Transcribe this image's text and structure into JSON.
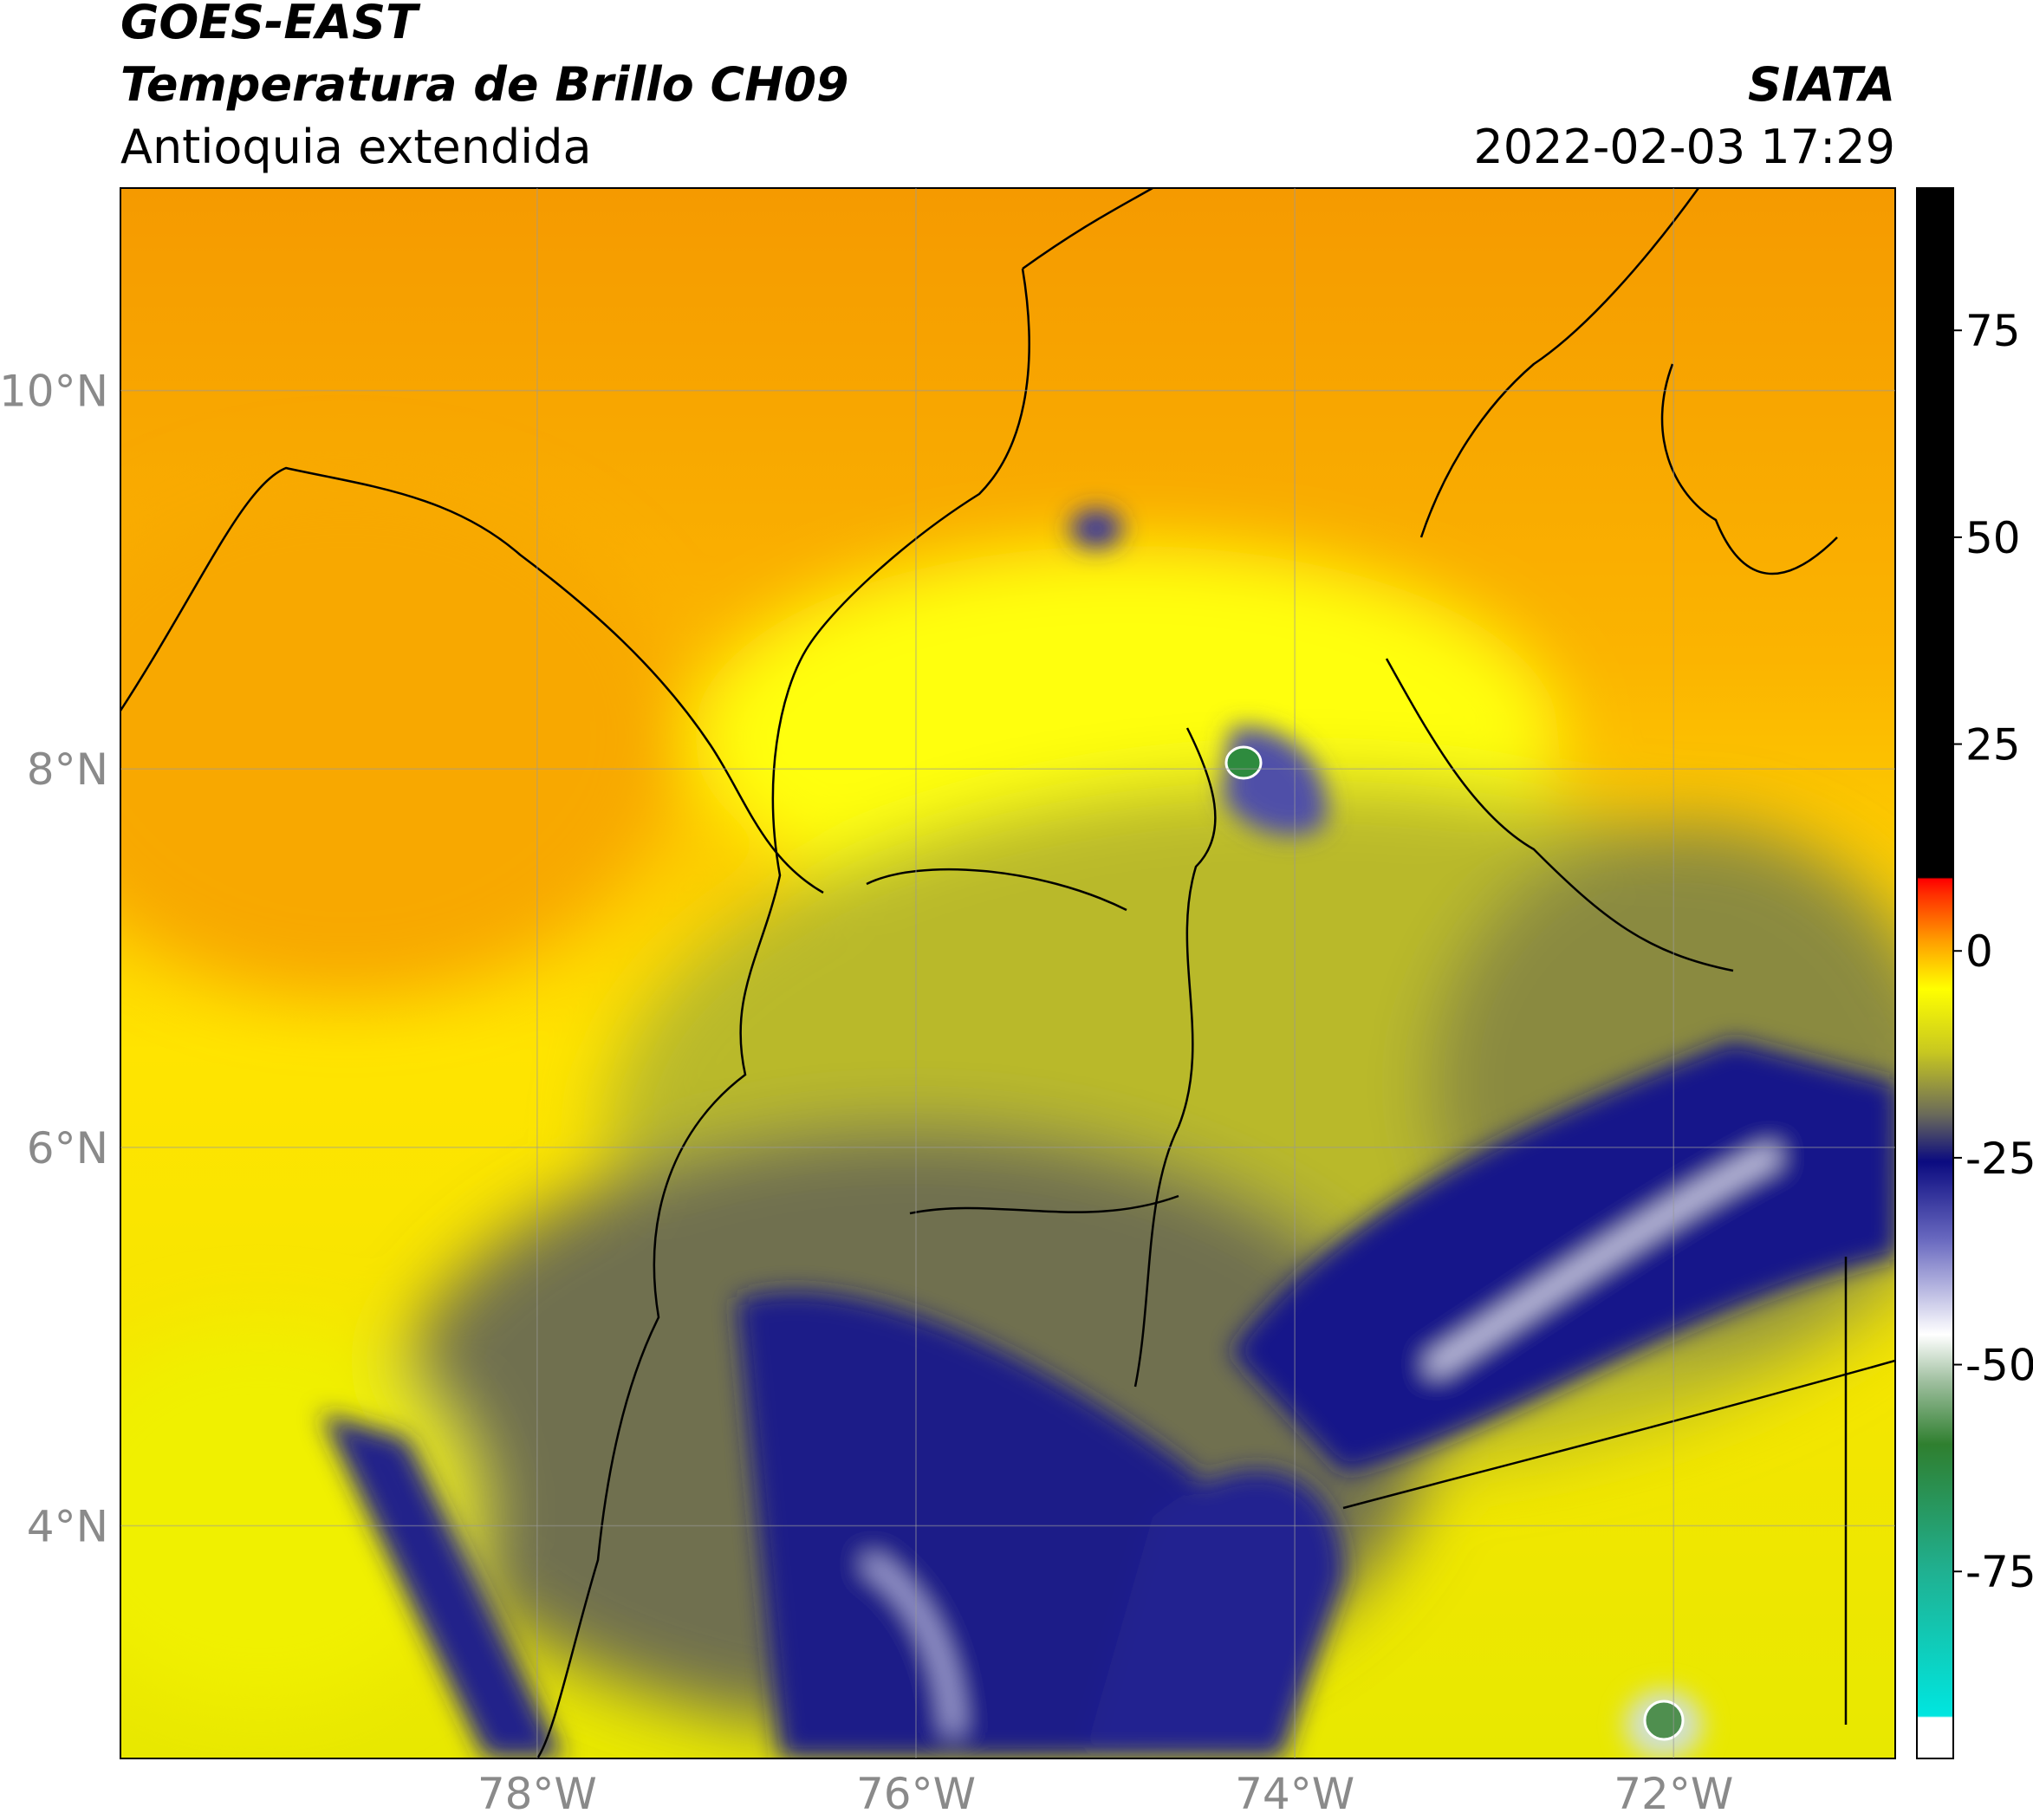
{
  "header": {
    "satellite": "GOES-EAST",
    "product": "Temperatura de Brillo CH09",
    "region": "Antioquia extendida",
    "source": "SIATA",
    "datetime": "2022-02-03 17:29"
  },
  "map": {
    "xlim": [
      -80.2,
      -70.83
    ],
    "ylim": [
      2.77,
      11.07
    ],
    "xticks": [
      {
        "value": -78,
        "label": "78°W"
      },
      {
        "value": -76,
        "label": "76°W"
      },
      {
        "value": -74,
        "label": "74°W"
      },
      {
        "value": -72,
        "label": "72°W"
      }
    ],
    "yticks": [
      {
        "value": 4,
        "label": "4°N"
      },
      {
        "value": 6,
        "label": "6°N"
      },
      {
        "value": 8,
        "label": "8°N"
      },
      {
        "value": 10,
        "label": "10°N"
      }
    ],
    "grid": true
  },
  "colorbar": {
    "clim": [
      -97.6,
      92.2
    ],
    "ticks": [
      -75,
      -50,
      -25,
      0,
      25,
      50,
      75
    ]
  }
}
